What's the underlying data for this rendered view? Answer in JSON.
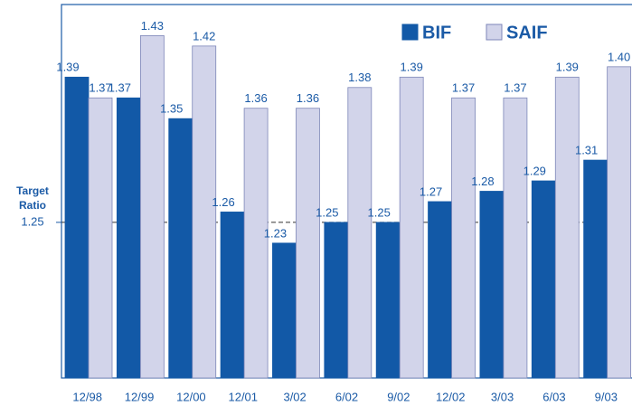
{
  "chart_data": {
    "type": "bar",
    "categories": [
      "12/98",
      "12/99",
      "12/00",
      "12/01",
      "3/02",
      "6/02",
      "9/02",
      "12/02",
      "3/03",
      "6/03",
      "9/03"
    ],
    "series": [
      {
        "name": "BIF",
        "color": "#1259a7",
        "values": [
          1.39,
          1.37,
          1.35,
          1.26,
          1.23,
          1.25,
          1.25,
          1.27,
          1.28,
          1.29,
          1.31
        ]
      },
      {
        "name": "SAIF",
        "color": "#d2d4ea",
        "values": [
          1.37,
          1.43,
          1.42,
          1.36,
          1.36,
          1.38,
          1.39,
          1.37,
          1.37,
          1.39,
          1.4
        ],
        "value_labels": [
          "1.37",
          "1.43",
          "1.42",
          "1.36",
          "1.36",
          "1.38",
          "1.39",
          "1.37",
          "1.37",
          "1.39",
          "1.40"
        ]
      }
    ],
    "ylim": [
      1.1,
      1.46
    ],
    "yticks": [
      1.25
    ],
    "annotations": [
      "Target",
      "Ratio"
    ],
    "legend": "top-right",
    "grid": true
  }
}
